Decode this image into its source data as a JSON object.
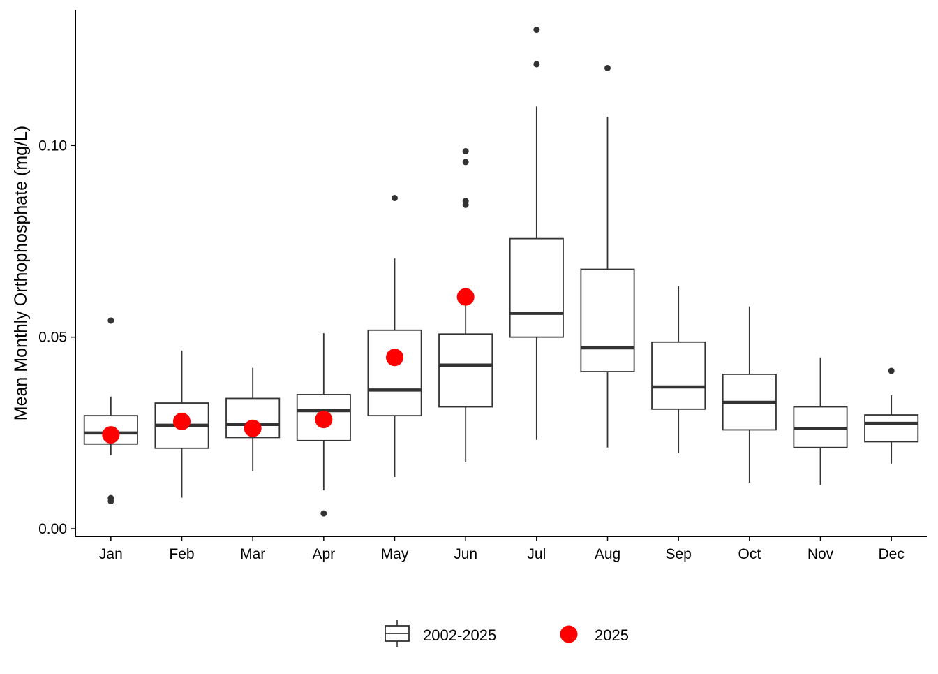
{
  "chart_data": {
    "type": "box",
    "title": "",
    "xlabel": "",
    "ylabel": "Mean Monthly Orthophosphate (mg/L)",
    "ylim": [
      -0.002,
      0.1365
    ],
    "yticks": [
      0.0,
      0.05,
      0.1
    ],
    "ytick_labels": [
      "0.00",
      "0.05",
      "0.10"
    ],
    "grid": false,
    "legend_position": "bottom",
    "colors": {
      "box_stroke": "#333333",
      "median": "#333333",
      "outlier": "#333333",
      "current_year": "#ff0000",
      "axis": "#000000"
    },
    "categories": [
      "Jan",
      "Feb",
      "Mar",
      "Apr",
      "May",
      "Jun",
      "Jul",
      "Aug",
      "Sep",
      "Oct",
      "Nov",
      "Dec"
    ],
    "series": [
      {
        "name": "2002-2025",
        "type": "box",
        "boxes": [
          {
            "whisker_low": 0.0192,
            "q1": 0.0221,
            "median": 0.025,
            "q3": 0.0295,
            "whisker_high": 0.0345,
            "outliers": [
              0.0543,
              0.008,
              0.0072
            ]
          },
          {
            "whisker_low": 0.0081,
            "q1": 0.021,
            "median": 0.027,
            "q3": 0.0328,
            "whisker_high": 0.0465,
            "outliers": []
          },
          {
            "whisker_low": 0.015,
            "q1": 0.0238,
            "median": 0.0272,
            "q3": 0.034,
            "whisker_high": 0.042,
            "outliers": []
          },
          {
            "whisker_low": 0.01,
            "q1": 0.023,
            "median": 0.0308,
            "q3": 0.035,
            "whisker_high": 0.051,
            "outliers": [
              0.004
            ]
          },
          {
            "whisker_low": 0.0135,
            "q1": 0.0295,
            "median": 0.0362,
            "q3": 0.0518,
            "whisker_high": 0.0705,
            "outliers": [
              0.0863
            ]
          },
          {
            "whisker_low": 0.0175,
            "q1": 0.0318,
            "median": 0.0427,
            "q3": 0.0508,
            "whisker_high": 0.0585,
            "outliers": [
              0.0985,
              0.0957,
              0.0855,
              0.0845
            ]
          },
          {
            "whisker_low": 0.0232,
            "q1": 0.05,
            "median": 0.0562,
            "q3": 0.0757,
            "whisker_high": 0.1102,
            "outliers": [
              0.1302,
              0.1212
            ]
          },
          {
            "whisker_low": 0.0212,
            "q1": 0.041,
            "median": 0.0472,
            "q3": 0.0677,
            "whisker_high": 0.1075,
            "outliers": [
              0.1202
            ]
          },
          {
            "whisker_low": 0.0197,
            "q1": 0.0312,
            "median": 0.037,
            "q3": 0.0487,
            "whisker_high": 0.0633,
            "outliers": []
          },
          {
            "whisker_low": 0.012,
            "q1": 0.0258,
            "median": 0.033,
            "q3": 0.0403,
            "whisker_high": 0.058,
            "outliers": []
          },
          {
            "whisker_low": 0.0115,
            "q1": 0.0212,
            "median": 0.0262,
            "q3": 0.0318,
            "whisker_high": 0.0447,
            "outliers": []
          },
          {
            "whisker_low": 0.017,
            "q1": 0.0227,
            "median": 0.0275,
            "q3": 0.0297,
            "whisker_high": 0.0348,
            "outliers": [
              0.0412
            ]
          }
        ]
      },
      {
        "name": "2025",
        "type": "point",
        "values": [
          0.0245,
          0.028,
          0.0262,
          0.0285,
          0.0447,
          0.0605,
          null,
          null,
          null,
          null,
          null,
          null
        ]
      }
    ]
  }
}
